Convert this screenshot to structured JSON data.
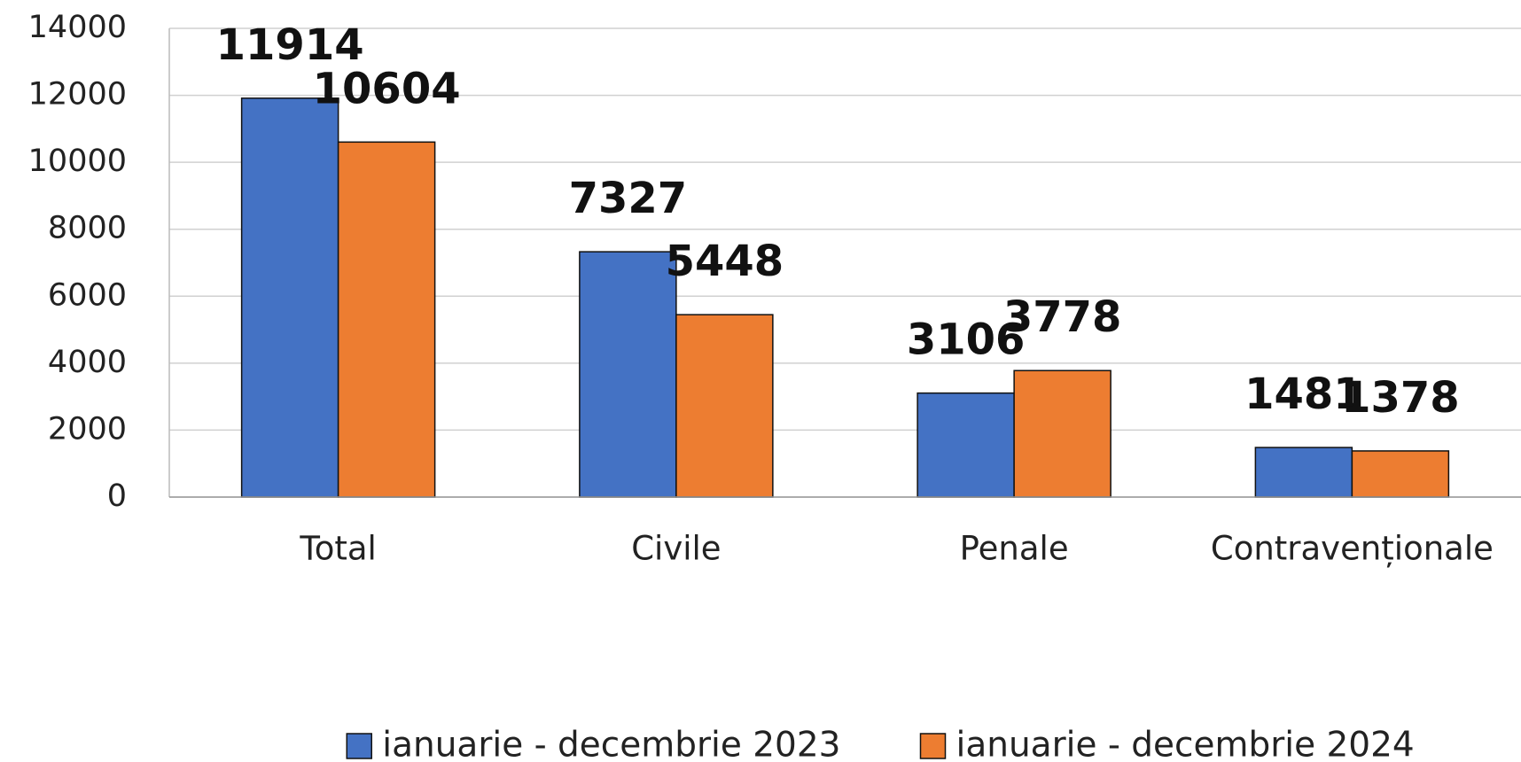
{
  "chart_data": {
    "type": "bar",
    "categories": [
      "Total",
      "Civile",
      "Penale",
      "Contravenționale"
    ],
    "series": [
      {
        "name": "ianuarie - decembrie 2023",
        "color": "#4472c4",
        "values": [
          11914,
          7327,
          3106,
          1481
        ]
      },
      {
        "name": "ianuarie - decembrie 2024",
        "color": "#ed7d31",
        "values": [
          10604,
          5448,
          3778,
          1378
        ]
      }
    ],
    "ylim": [
      0,
      14000
    ],
    "yticks": [
      0,
      2000,
      4000,
      6000,
      8000,
      10000,
      12000,
      14000
    ],
    "grid": true,
    "legend": "bottom"
  }
}
